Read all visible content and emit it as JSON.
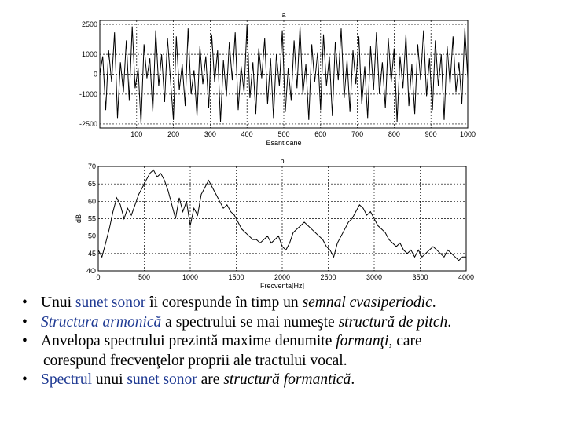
{
  "chart_data": [
    {
      "type": "line",
      "title": "a",
      "xlabel": "Esantioane",
      "ylabel": "",
      "xlim": [
        0,
        1000
      ],
      "ylim": [
        -2700,
        2700
      ],
      "x_ticks": [
        100,
        200,
        300,
        400,
        500,
        600,
        700,
        800,
        900,
        1000
      ],
      "y_ticks": [
        -2500,
        -1000,
        0,
        1000,
        2500
      ],
      "y_tick_labels": [
        "-2500",
        "-1000",
        "0",
        "1000",
        "2500"
      ],
      "grid": true,
      "series": [
        {
          "x": [
            0,
            8,
            16,
            24,
            32,
            40,
            48,
            56,
            64,
            72,
            80,
            88,
            96,
            104,
            112,
            120,
            128,
            136,
            144,
            152,
            160,
            168,
            176,
            184,
            192,
            200,
            208,
            216,
            224,
            232,
            240,
            248,
            256,
            264,
            272,
            280,
            288,
            296,
            304,
            312,
            320,
            328,
            336,
            344,
            352,
            360,
            368,
            376,
            384,
            392,
            400,
            408,
            416,
            424,
            432,
            440,
            448,
            456,
            464,
            472,
            480,
            488,
            496,
            504,
            512,
            520,
            528,
            536,
            544,
            552,
            560,
            568,
            576,
            584,
            592,
            600,
            608,
            616,
            624,
            632,
            640,
            648,
            656,
            664,
            672,
            680,
            688,
            696,
            704,
            712,
            720,
            728,
            736,
            744,
            752,
            760,
            768,
            776,
            784,
            792,
            800,
            808,
            816,
            824,
            832,
            840,
            848,
            856,
            864,
            872,
            880,
            888,
            896,
            904,
            912,
            920,
            928,
            936,
            944,
            952,
            960,
            968,
            976,
            984,
            992,
            1000
          ],
          "values": [
            0,
            900,
            -1800,
            1200,
            -400,
            2100,
            -2200,
            600,
            -900,
            1700,
            -1300,
            2400,
            -700,
            300,
            -2500,
            1500,
            -200,
            800,
            -1900,
            2200,
            -600,
            1000,
            -1400,
            1800,
            -300,
            -2300,
            1900,
            -800,
            500,
            -1600,
            2300,
            -1000,
            200,
            -2100,
            1400,
            -500,
            900,
            -1700,
            2000,
            -400,
            1200,
            -2400,
            700,
            -1100,
            1600,
            -300,
            2100,
            -1800,
            400,
            -900,
            2500,
            -1200,
            600,
            -2000,
            1300,
            -200,
            1800,
            -1500,
            800,
            -2200,
            1000,
            -600,
            2200,
            -1900,
            300,
            -1300,
            1700,
            -700,
            2400,
            -1000,
            500,
            -2300,
            1500,
            -400,
            1100,
            -1800,
            2000,
            -600,
            900,
            -2100,
            1600,
            -300,
            2300,
            -1200,
            700,
            -1900,
            1200,
            -500,
            1900,
            -1500,
            400,
            -2200,
            1400,
            -800,
            2100,
            -1000,
            600,
            -1700,
            1800,
            -400,
            1300,
            -2400,
            900,
            -700,
            2000,
            -1600,
            500,
            -2000,
            1500,
            -300,
            2200,
            -1100,
            800,
            -1800,
            1700,
            -600,
            1000,
            -2300,
            1400,
            -500,
            1900,
            -900,
            600,
            -1500,
            2300,
            -200
          ]
        }
      ]
    },
    {
      "type": "line",
      "title": "b",
      "xlabel": "Frecventa[Hz]",
      "ylabel": "dB",
      "xlim": [
        0,
        4000
      ],
      "ylim": [
        40,
        70
      ],
      "x_ticks": [
        0,
        500,
        1000,
        1500,
        2000,
        2500,
        3000,
        3500,
        4000
      ],
      "y_ticks": [
        40,
        45,
        50,
        55,
        60,
        65,
        70
      ],
      "y_tick_labels": [
        "4O",
        "45",
        "50",
        "55",
        "60",
        "65",
        "70"
      ],
      "grid": true,
      "series": [
        {
          "x": [
            0,
            40,
            80,
            120,
            160,
            200,
            240,
            280,
            320,
            360,
            400,
            440,
            480,
            520,
            560,
            600,
            640,
            680,
            720,
            760,
            800,
            840,
            880,
            920,
            960,
            1000,
            1040,
            1080,
            1120,
            1160,
            1200,
            1240,
            1280,
            1320,
            1360,
            1400,
            1440,
            1480,
            1520,
            1560,
            1600,
            1640,
            1680,
            1720,
            1760,
            1800,
            1840,
            1880,
            1920,
            1960,
            2000,
            2040,
            2080,
            2120,
            2160,
            2200,
            2240,
            2280,
            2320,
            2360,
            2400,
            2440,
            2480,
            2520,
            2560,
            2600,
            2640,
            2680,
            2720,
            2760,
            2800,
            2840,
            2880,
            2920,
            2960,
            3000,
            3040,
            3080,
            3120,
            3160,
            3200,
            3240,
            3280,
            3320,
            3360,
            3400,
            3440,
            3480,
            3520,
            3560,
            3600,
            3640,
            3680,
            3720,
            3760,
            3800,
            3840,
            3880,
            3920,
            3960,
            4000
          ],
          "values": [
            46,
            44,
            48,
            52,
            57,
            61,
            59,
            55,
            58,
            56,
            59,
            62,
            64,
            66,
            68,
            69,
            67,
            68,
            66,
            63,
            59,
            55,
            61,
            57,
            60,
            53,
            58,
            56,
            62,
            64,
            66,
            64,
            62,
            60,
            58,
            59,
            57,
            56,
            54,
            52,
            51,
            50,
            49,
            49,
            48,
            49,
            50,
            48,
            49,
            50,
            47,
            46,
            48,
            51,
            52,
            53,
            54,
            53,
            52,
            51,
            50,
            49,
            47,
            46,
            44,
            48,
            50,
            52,
            54,
            55,
            57,
            59,
            58,
            56,
            57,
            55,
            53,
            52,
            51,
            49,
            48,
            47,
            48,
            46,
            45,
            46,
            44,
            46,
            44,
            45,
            46,
            47,
            46,
            45,
            44,
            46,
            45,
            44,
            43,
            44,
            44
          ]
        }
      ]
    }
  ],
  "bullets": [
    {
      "parts": [
        {
          "text": "Unui ",
          "style": ""
        },
        {
          "text": "sunet sonor",
          "style": "hl"
        },
        {
          "text": " îi corespunde în timp un ",
          "style": ""
        },
        {
          "text": "semnal cvasiperiodic",
          "style": "it"
        },
        {
          "text": ".",
          "style": ""
        }
      ]
    },
    {
      "parts": [
        {
          "text": "Structura armonică",
          "style": "hl it"
        },
        {
          "text": " a spectrului se mai numeşte ",
          "style": ""
        },
        {
          "text": "structură de pitch",
          "style": "it"
        },
        {
          "text": ".",
          "style": ""
        }
      ]
    },
    {
      "parts": [
        {
          "text": "Anvelopa spectrului prezintă maxime denumite ",
          "style": ""
        },
        {
          "text": "formanţi",
          "style": "it"
        },
        {
          "text": ", care",
          "style": ""
        }
      ],
      "continuation": "corespund frecvenţelor proprii ale tractului vocal."
    },
    {
      "parts": [
        {
          "text": "Spectrul",
          "style": "hl"
        },
        {
          "text": " unui ",
          "style": ""
        },
        {
          "text": "sunet sonor",
          "style": "hl"
        },
        {
          "text": " are ",
          "style": ""
        },
        {
          "text": "structură formantică",
          "style": "it"
        },
        {
          "text": ".",
          "style": ""
        }
      ]
    }
  ],
  "bullet_symbol": "•"
}
